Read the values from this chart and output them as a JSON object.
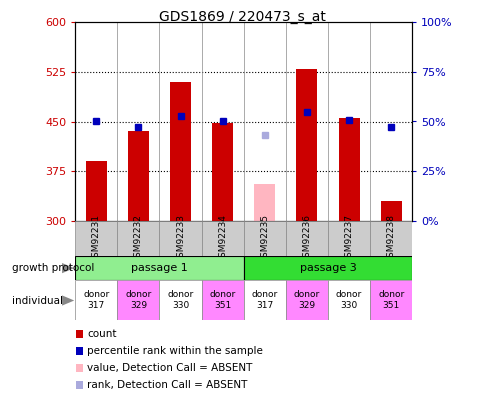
{
  "title": "GDS1869 / 220473_s_at",
  "samples": [
    "GSM92231",
    "GSM92232",
    "GSM92233",
    "GSM92234",
    "GSM92235",
    "GSM92236",
    "GSM92237",
    "GSM92238"
  ],
  "count_values": [
    390,
    435,
    510,
    448,
    null,
    530,
    455,
    330
  ],
  "count_absent": [
    null,
    null,
    null,
    null,
    355,
    null,
    null,
    null
  ],
  "percentile_values": [
    50,
    47,
    53,
    50,
    null,
    55,
    51,
    47
  ],
  "percentile_absent": [
    null,
    null,
    null,
    null,
    43,
    null,
    null,
    null
  ],
  "ylim": [
    300,
    600
  ],
  "yticks": [
    300,
    375,
    450,
    525,
    600
  ],
  "y2lim": [
    0,
    100
  ],
  "y2ticks": [
    0,
    25,
    50,
    75,
    100
  ],
  "y2labels": [
    "0%",
    "25%",
    "50%",
    "75%",
    "100%"
  ],
  "passage1_color": "#90EE90",
  "passage3_color": "#33DD33",
  "donors": [
    "donor\n317",
    "donor\n329",
    "donor\n330",
    "donor\n351",
    "donor\n317",
    "donor\n329",
    "donor\n330",
    "donor\n351"
  ],
  "donor_colors": [
    "white",
    "#FF88FF",
    "white",
    "#FF88FF",
    "white",
    "#FF88FF",
    "white",
    "#FF88FF"
  ],
  "bar_color": "#CC0000",
  "absent_bar_color": "#FFB6C1",
  "dot_color": "#0000BB",
  "absent_dot_color": "#AAAADD",
  "label_color_left": "#CC0000",
  "label_color_right": "#0000BB",
  "grid_ticks": [
    375,
    450,
    525
  ],
  "legend_items": [
    {
      "color": "#CC0000",
      "label": "count"
    },
    {
      "color": "#0000BB",
      "label": "percentile rank within the sample"
    },
    {
      "color": "#FFB6C1",
      "label": "value, Detection Call = ABSENT"
    },
    {
      "color": "#AAAADD",
      "label": "rank, Detection Call = ABSENT"
    }
  ]
}
